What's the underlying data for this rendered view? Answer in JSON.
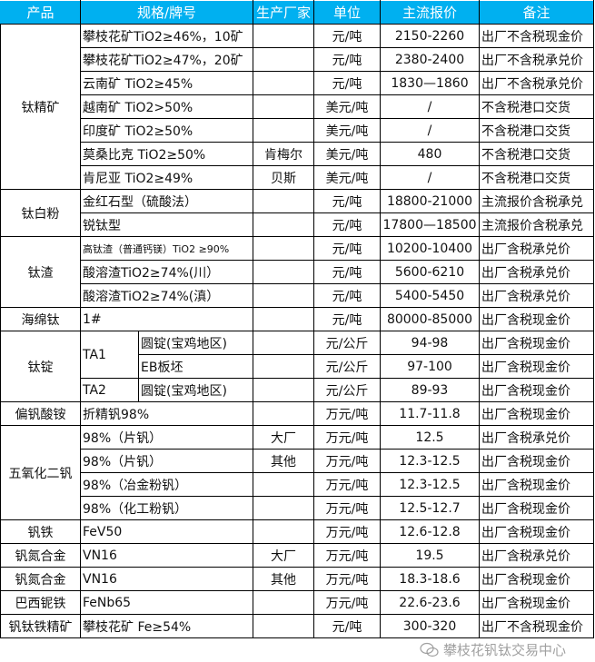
{
  "header": {
    "product": "产品",
    "spec": "规格/牌号",
    "maker": "生产厂家",
    "unit": "单位",
    "price": "主流报价",
    "note": "备注"
  },
  "colors": {
    "header_bg": "#00b0f0",
    "header_text": "#ffffff"
  },
  "groups": [
    {
      "product": "钛精矿",
      "rows": [
        {
          "spec": "攀枝花矿TiO2≥46%，10矿",
          "maker": "",
          "unit": "元/吨",
          "price": "2150-2260",
          "note": "出厂不含税现金价"
        },
        {
          "spec": "攀枝花矿TiO2≥47%，20矿",
          "maker": "",
          "unit": "元/吨",
          "price": "2380-2400",
          "note": "出厂不含税承兑价"
        },
        {
          "spec": "云南矿 TiO2≥45%",
          "maker": "",
          "unit": "元/吨",
          "price": "1830—1860",
          "note": "出厂不含税承兑价"
        },
        {
          "spec": "越南矿 TiO2>50%",
          "maker": "",
          "unit": "美元/吨",
          "price": "/",
          "note": "不含税港口交货"
        },
        {
          "spec": "印度矿 TiO2≥50%",
          "maker": "",
          "unit": "美元/吨",
          "price": "/",
          "note": "不含税港口交货"
        },
        {
          "spec": "莫桑比克 TiO2≥50%",
          "maker": "肯梅尔",
          "unit": "美元/吨",
          "price": "480",
          "note": "不含税港口交货"
        },
        {
          "spec": "肯尼亚 TiO2≥49%",
          "maker": "贝斯",
          "unit": "美元/吨",
          "price": "/",
          "note": "不含税港口交货"
        }
      ]
    },
    {
      "product": "钛白粉",
      "rows": [
        {
          "spec": "金红石型（硫酸法）",
          "maker": "",
          "unit": "元/吨",
          "price": "18800-21000",
          "note": "主流报价含税承兑"
        },
        {
          "spec": "锐钛型",
          "maker": "",
          "unit": "元/吨",
          "price": "17800—18500",
          "note": "主流报价含税承兑"
        }
      ]
    },
    {
      "product": "钛渣",
      "rows": [
        {
          "spec": "高钛渣（普通钙镁）TiO2 ≥90%",
          "maker": "",
          "unit": "元/吨",
          "price": "10200-10400",
          "note": "出厂含税承兑价",
          "small": true
        },
        {
          "spec": "酸溶渣TiO2≥74%(川）",
          "maker": "",
          "unit": "元/吨",
          "price": "5600-6210",
          "note": "出厂含税承兑价"
        },
        {
          "spec": "酸溶渣TiO2≥74%(滇）",
          "maker": "",
          "unit": "元/吨",
          "price": "5400-5450",
          "note": "出厂含税承兑价"
        }
      ]
    },
    {
      "product": "海绵钛",
      "rows": [
        {
          "spec": "1#",
          "maker": "",
          "unit": "元/吨",
          "price": "80000-85000",
          "note": "出厂含税现金价"
        }
      ]
    },
    {
      "product": "钛锭",
      "rows": [
        {
          "grade": "TA1",
          "spec": "圆锭(宝鸡地区)",
          "unit": "元/公斤",
          "price": "94-98",
          "note": "出厂含税现金价"
        },
        {
          "grade": "TA1",
          "spec": "EB板坯",
          "unit": "元/公斤",
          "price": "97-100",
          "note": "出厂含税现金价"
        },
        {
          "grade": "TA2",
          "spec": "圆锭(宝鸡地区)",
          "unit": "元/公斤",
          "price": "89-93",
          "note": "出厂含税现金价"
        }
      ]
    },
    {
      "product": "偏钒酸铵",
      "rows": [
        {
          "spec": "折精钒98%",
          "maker": "",
          "unit": "万元/吨",
          "price": "11.7-11.8",
          "note": "出厂含税现金价"
        }
      ]
    },
    {
      "product": "五氧化二钒",
      "rows": [
        {
          "spec": "98%（片钒）",
          "maker": "大厂",
          "unit": "万元/吨",
          "price": "12.5",
          "note": "出厂含税承兑价"
        },
        {
          "spec": "98%（片钒）",
          "maker": "其他",
          "unit": "万元/吨",
          "price": "12.3-12.5",
          "note": "出厂含税现金价"
        },
        {
          "spec": "98%（冶金粉钒）",
          "maker": "",
          "unit": "万元/吨",
          "price": "12.3-12.5",
          "note": "出厂含税现金价"
        },
        {
          "spec": "98%（化工粉钒）",
          "maker": "",
          "unit": "万元/吨",
          "price": "12.5-12.7",
          "note": "出厂含税现金价"
        }
      ]
    },
    {
      "product": "钒铁",
      "rows": [
        {
          "spec": "FeV50",
          "maker": "",
          "unit": "万元/吨",
          "price": "12.6-12.8",
          "note": "出厂含税现金价"
        }
      ]
    },
    {
      "product": "钒氮合金",
      "rows": [
        {
          "spec": "VN16",
          "maker": "大厂",
          "unit": "万元/吨",
          "price": "19.5",
          "note": "出厂含税承兑价"
        }
      ]
    },
    {
      "product": "钒氮合金",
      "rows": [
        {
          "spec": "VN16",
          "maker": "其他",
          "unit": "万元/吨",
          "price": "18.3-18.6",
          "note": "出厂含税现金价"
        }
      ]
    },
    {
      "product": "巴西铌铁",
      "rows": [
        {
          "spec": "FeNb65",
          "maker": "",
          "unit": "万元/吨",
          "price": "22.6-23.6",
          "note": "出厂含税现金价"
        }
      ]
    },
    {
      "product": "钒钛铁精矿",
      "rows": [
        {
          "spec": "攀枝花矿 Fe≥54%",
          "maker": "",
          "unit": "元/吨",
          "price": "300-320",
          "note": "出厂不含税现金价"
        }
      ]
    }
  ],
  "watermark": {
    "icon": "wechat-icon",
    "text": "攀枝花钒钛交易中心"
  }
}
